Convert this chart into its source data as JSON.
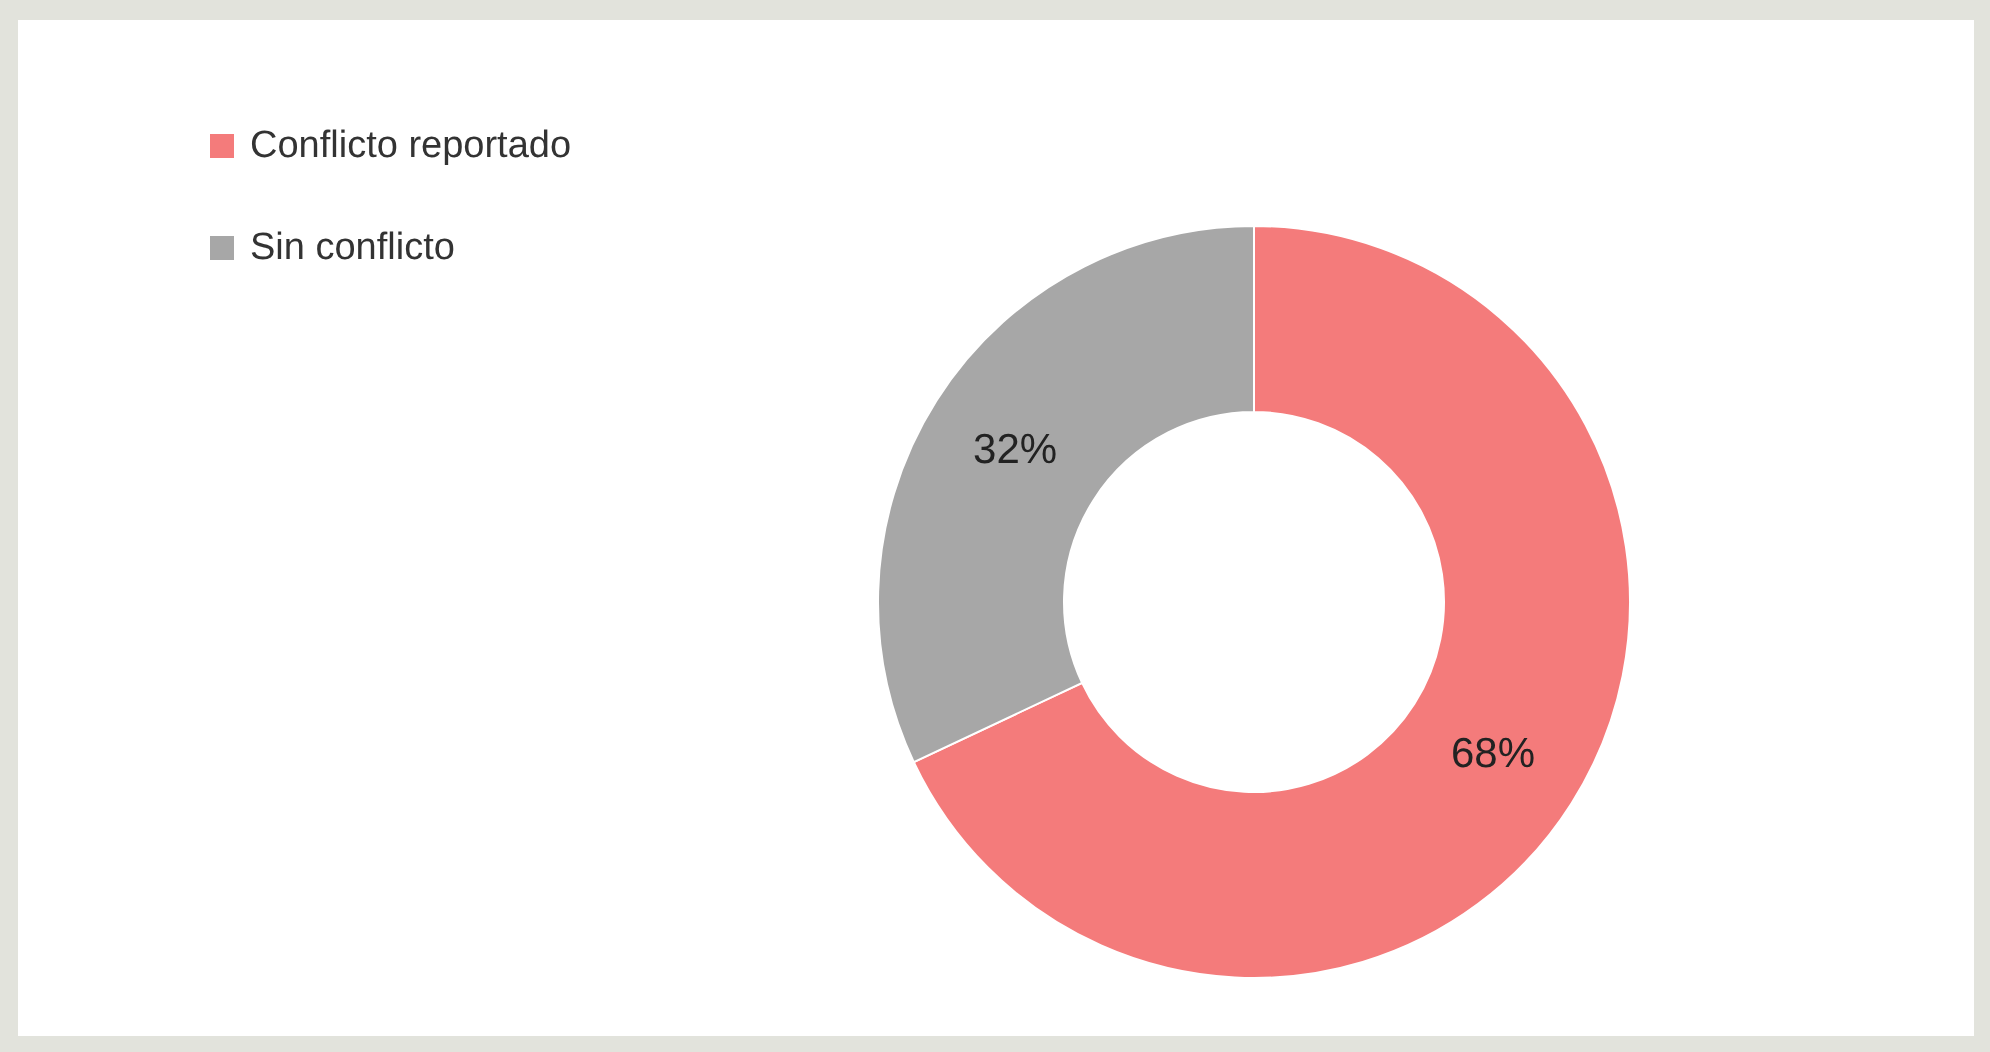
{
  "chart_data": {
    "type": "donut",
    "categories": [
      "Conflicto reportado",
      "Sin conflicto"
    ],
    "values": [
      68,
      32
    ],
    "colors": [
      "#f47b7b",
      "#a7a7a7"
    ],
    "value_labels": [
      "68%",
      "32%"
    ],
    "legend": "top left"
  }
}
